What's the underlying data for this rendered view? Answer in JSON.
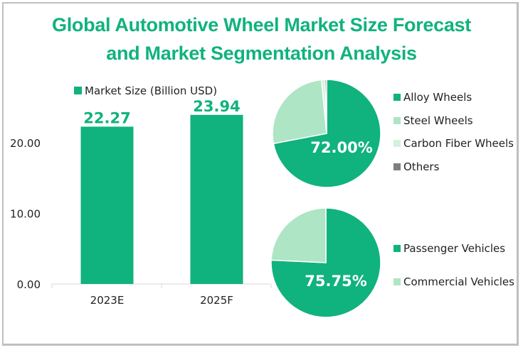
{
  "title_lines": [
    "Global Automotive Wheel Market Size Forecast",
    "and Market Segmentation Analysis"
  ],
  "colors": {
    "primary": "#10b27e",
    "light": "#aee5c4",
    "lighter": "#d2f2de",
    "gray": "#7f7f7f",
    "axis": "#d9d9d9",
    "text": "#222222"
  },
  "chart_data": [
    {
      "type": "bar",
      "title": "",
      "legend": "Market Size (Billion USD)",
      "legend_position": "top",
      "categories": [
        "2023E",
        "2025F"
      ],
      "values": [
        22.27,
        23.94
      ],
      "data_labels": [
        "22.27",
        "23.94"
      ],
      "yticks": [
        "0.00",
        "10.00",
        "20.00"
      ],
      "ytick_values": [
        0,
        10,
        20
      ],
      "ylim": [
        0,
        25
      ],
      "grid": false,
      "xlabel": "",
      "ylabel": ""
    },
    {
      "type": "pie",
      "title": "",
      "legend_position": "right",
      "labels": [
        "Alloy Wheels",
        "Steel Wheels",
        "Carbon Fiber Wheels",
        "Others"
      ],
      "values": [
        72.0,
        26.5,
        1.0,
        0.5
      ],
      "shown_label": "72.00%",
      "colors": [
        "#10b27e",
        "#aee5c4",
        "#d2f2de",
        "#7f7f7f"
      ]
    },
    {
      "type": "pie",
      "title": "",
      "legend_position": "right",
      "labels": [
        "Passenger Vehicles",
        "Commercial Vehicles"
      ],
      "values": [
        75.75,
        24.25
      ],
      "shown_label": "75.75%",
      "colors": [
        "#10b27e",
        "#aee5c4"
      ]
    }
  ]
}
